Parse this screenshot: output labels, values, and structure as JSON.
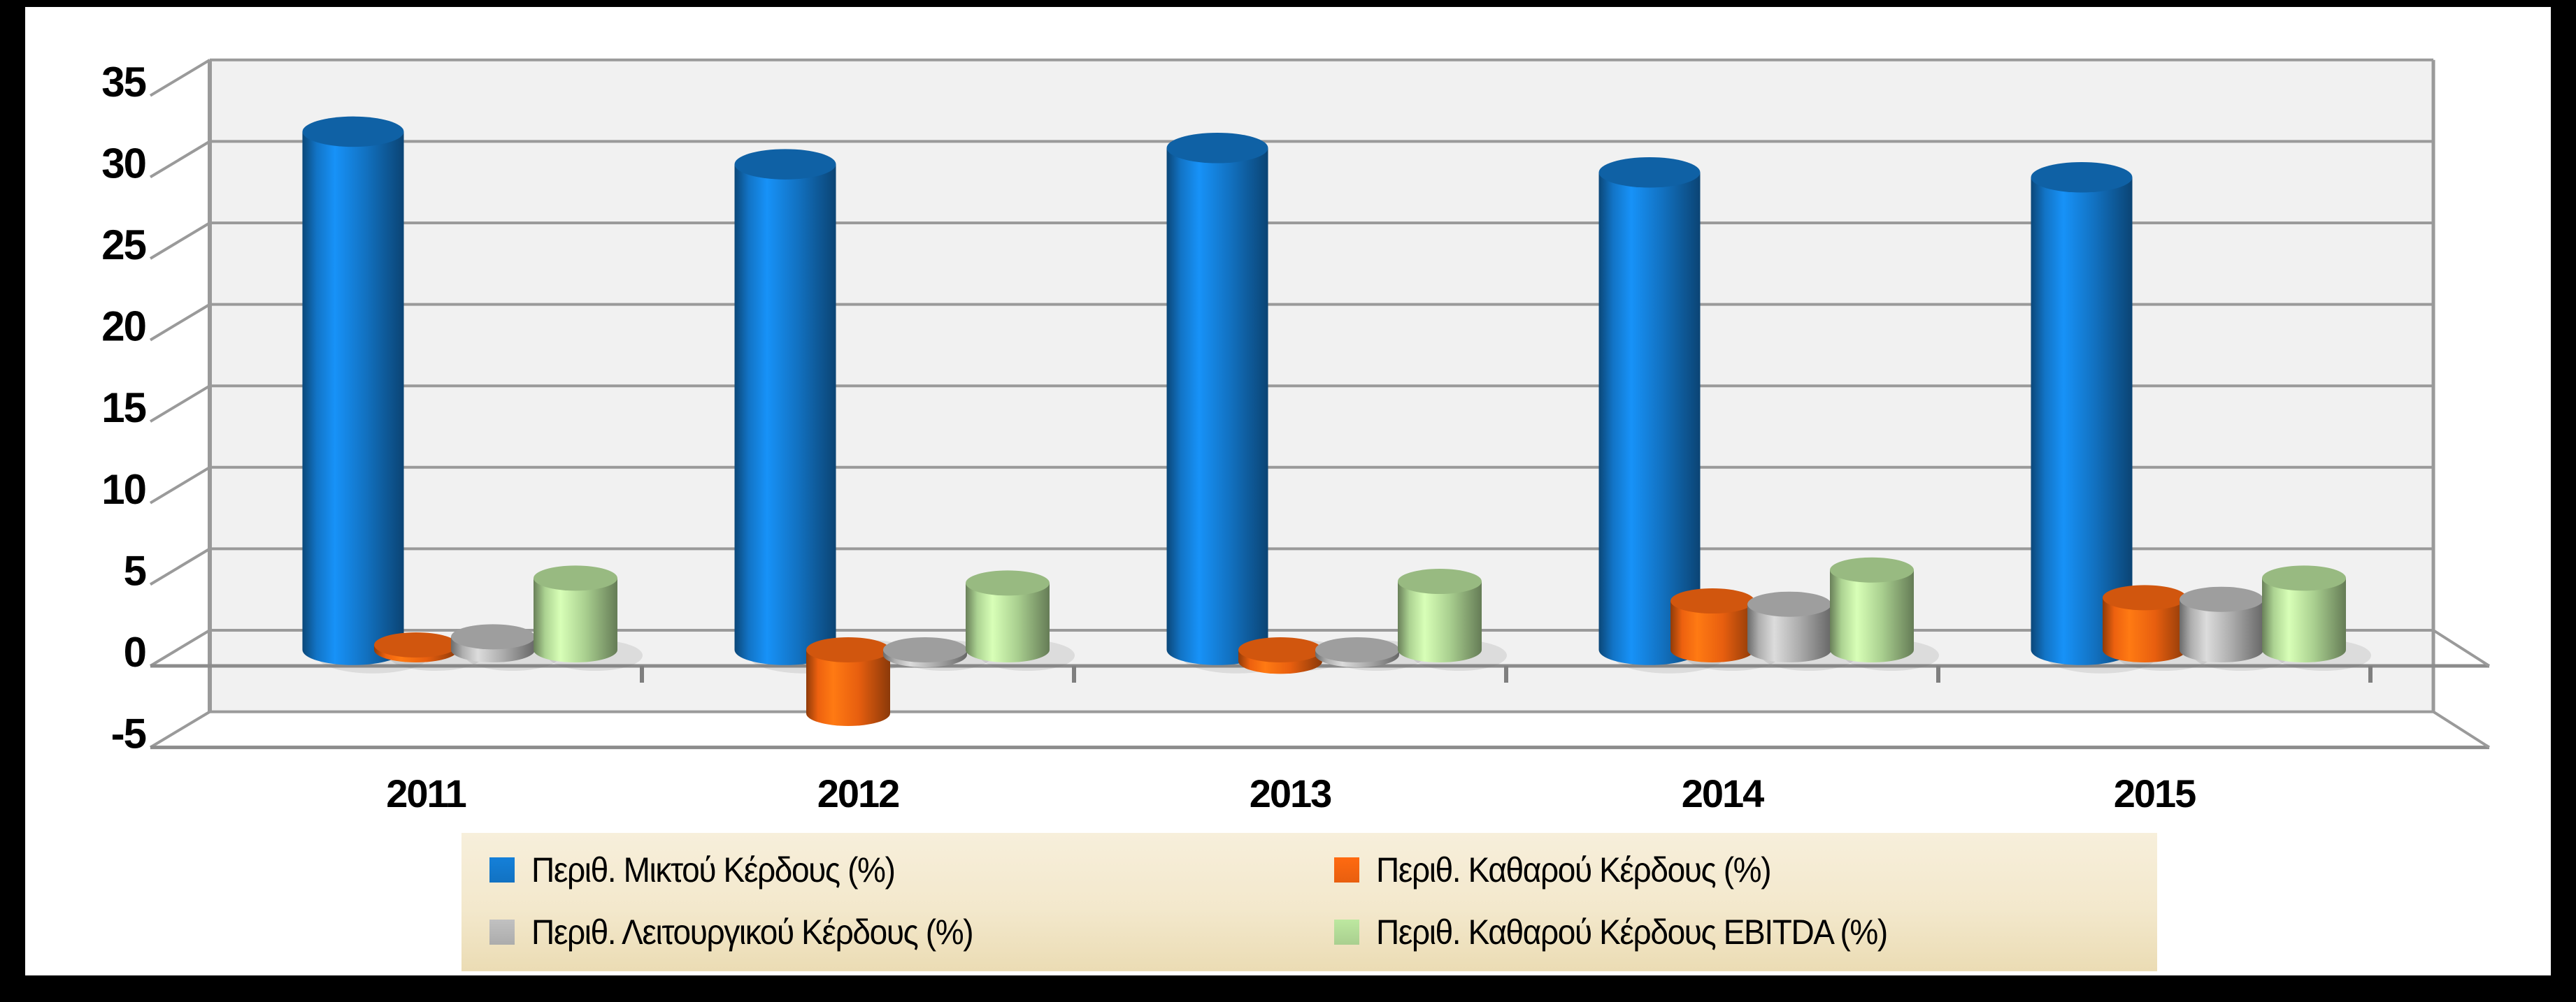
{
  "chart_data": {
    "type": "bar",
    "style": "3d-cylinder",
    "title": "",
    "xlabel": "",
    "ylabel": "",
    "categories": [
      "2011",
      "2012",
      "2013",
      "2014",
      "2015"
    ],
    "series": [
      {
        "name": "Περιθ. Μικτού Κέρδους (%)",
        "color": "#1272C2",
        "values": [
          31.8,
          29.8,
          30.8,
          29.3,
          29.0
        ]
      },
      {
        "name": "Περιθ. Καθαρού Κέρδους (%)",
        "color": "#E85F0F",
        "values": [
          0.3,
          -3.9,
          -0.7,
          3.0,
          3.2
        ]
      },
      {
        "name": "Περιθ. Λειτουργικού Κέρδους (%)",
        "color": "#ACACAC",
        "values": [
          0.8,
          -0.3,
          -0.3,
          2.8,
          3.1
        ]
      },
      {
        "name": "Περιθ. Καθαρού Κέρδους EBITDA (%)",
        "color": "#A9CF8F",
        "values": [
          4.4,
          4.1,
          4.2,
          4.9,
          4.4
        ]
      }
    ],
    "ylim": [
      -5,
      35
    ],
    "ytick_step": 5,
    "yticks": [
      "35",
      "30",
      "25",
      "20",
      "15",
      "10",
      "5",
      "0",
      "-5"
    ],
    "grid": true,
    "legend_position": "bottom",
    "colors": {
      "gridline": "#9A9A9A",
      "wall": "#F1F1F1",
      "legend_bg": "#F3E8CC",
      "frame": "#000000",
      "background": "#FFFFFF"
    }
  }
}
